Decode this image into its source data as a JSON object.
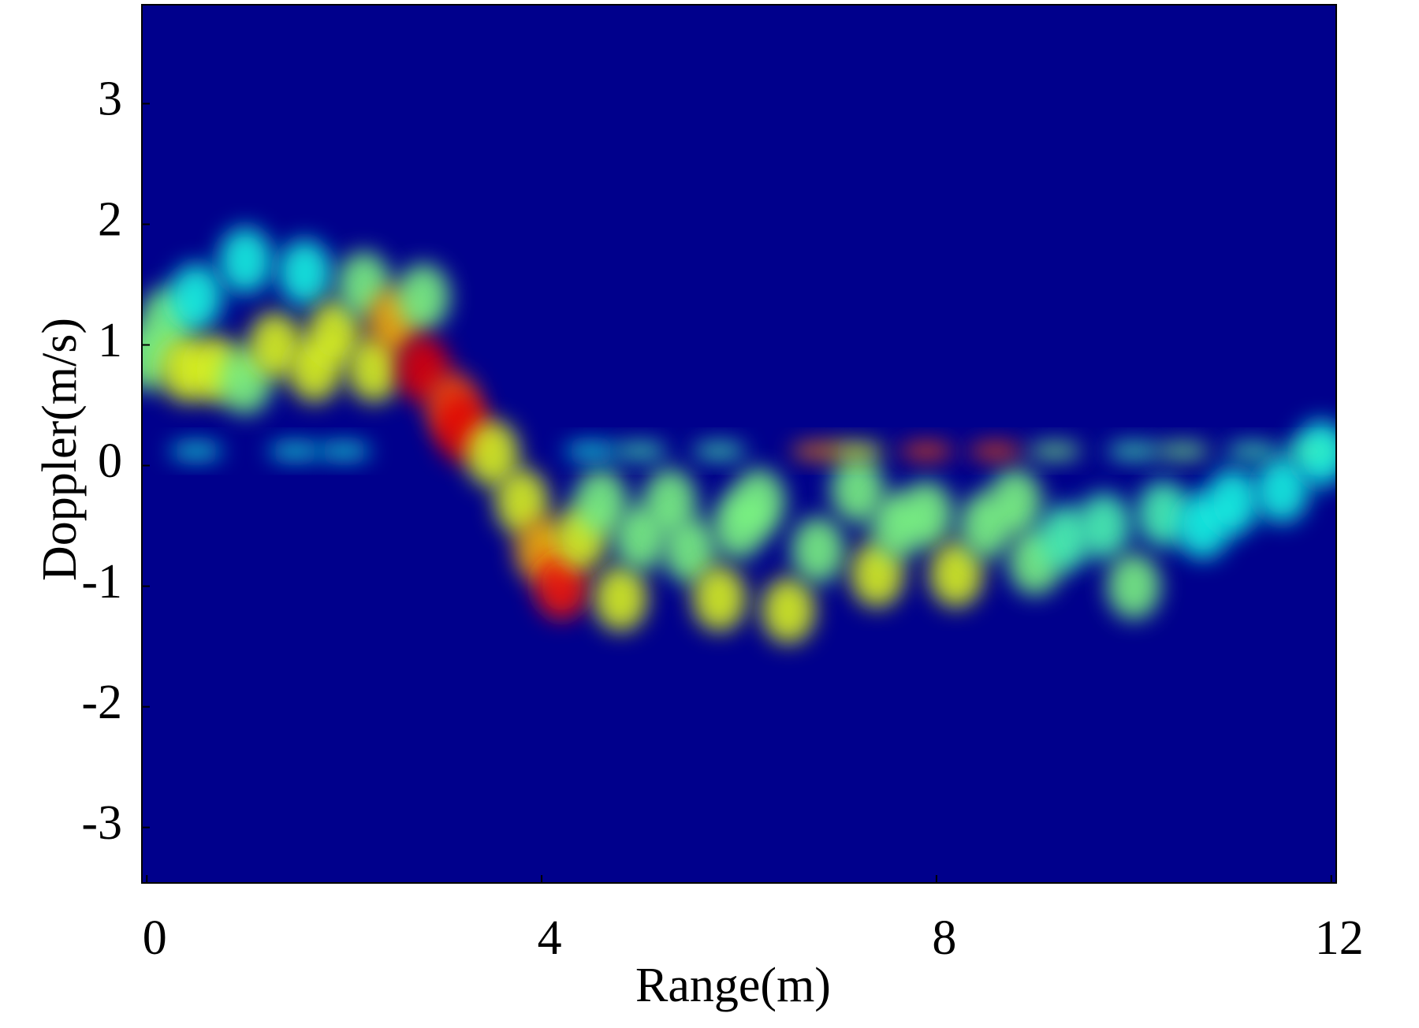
{
  "chart_data": {
    "type": "heatmap",
    "xlabel": "Range(m)",
    "ylabel": "Doppler(m/s)",
    "xlim": [
      -0.05,
      12.05
    ],
    "ylim": [
      -3.46,
      3.82
    ],
    "xticks": [
      0,
      4,
      8,
      12
    ],
    "yticks": [
      -3,
      -2,
      -1,
      0,
      1,
      2,
      3
    ],
    "background": "#00008c",
    "x": [
      0.0,
      0.2,
      0.4,
      0.5,
      0.7,
      1.0,
      1.0,
      1.3,
      1.6,
      1.7,
      1.9,
      2.2,
      2.3,
      2.5,
      2.8,
      2.8,
      3.1,
      3.2,
      3.5,
      3.8,
      4.0,
      4.2,
      4.4,
      4.6,
      4.8,
      5.0,
      5.3,
      5.5,
      5.8,
      6.0,
      6.2,
      6.5,
      6.8,
      7.2,
      7.4,
      7.6,
      7.9,
      8.2,
      8.5,
      8.8,
      9.0,
      9.3,
      9.7,
      10.0,
      10.3,
      10.7,
      11.0,
      11.5,
      11.9,
      0.5,
      1.5,
      2.0,
      4.5,
      5.0,
      5.8,
      6.8,
      7.2,
      7.9,
      8.6,
      9.2,
      10.0,
      10.5,
      11.2,
      11.8
    ],
    "values": [
      0.9,
      1.2,
      0.8,
      1.4,
      0.8,
      1.7,
      0.7,
      1.0,
      1.6,
      0.8,
      1.1,
      1.5,
      0.8,
      1.2,
      1.4,
      0.8,
      0.5,
      0.3,
      0.1,
      -0.3,
      -0.7,
      -1.0,
      -0.6,
      -0.3,
      -1.1,
      -0.6,
      -0.3,
      -0.7,
      -1.1,
      -0.5,
      -0.3,
      -1.2,
      -0.7,
      -0.2,
      -0.9,
      -0.5,
      -0.4,
      -0.9,
      -0.5,
      -0.3,
      -0.8,
      -0.6,
      -0.5,
      -1.0,
      -0.4,
      -0.5,
      -0.3,
      -0.2,
      0.1,
      0.12,
      0.12,
      0.12,
      0.12,
      0.12,
      0.12,
      0.12,
      0.12,
      0.12,
      0.12,
      0.12,
      0.12,
      0.12,
      0.12,
      0.12
    ],
    "intensity": [
      0.5,
      0.5,
      0.6,
      0.4,
      0.6,
      0.4,
      0.5,
      0.6,
      0.4,
      0.6,
      0.6,
      0.5,
      0.6,
      0.7,
      0.5,
      0.9,
      0.8,
      0.9,
      0.6,
      0.6,
      0.7,
      0.85,
      0.6,
      0.5,
      0.6,
      0.5,
      0.5,
      0.5,
      0.6,
      0.5,
      0.5,
      0.6,
      0.5,
      0.5,
      0.6,
      0.5,
      0.5,
      0.6,
      0.5,
      0.5,
      0.5,
      0.45,
      0.45,
      0.5,
      0.45,
      0.4,
      0.4,
      0.4,
      0.4,
      0.4,
      0.4,
      0.4,
      0.4,
      0.45,
      0.45,
      0.75,
      0.6,
      0.8,
      0.8,
      0.5,
      0.45,
      0.5,
      0.45,
      0.45
    ]
  }
}
